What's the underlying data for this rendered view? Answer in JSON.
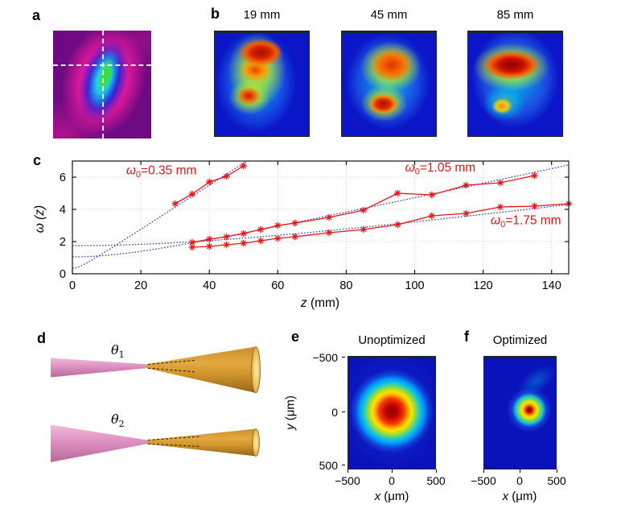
{
  "panels": {
    "a": {
      "label": "a",
      "description_overlays": [
        "horizontal-dashed-crosshair",
        "vertical-dashed-crosshair"
      ]
    },
    "b": {
      "label": "b",
      "titles": [
        "19 mm",
        "45 mm",
        "85 mm"
      ]
    },
    "c": {
      "label": "c"
    },
    "d": {
      "label": "d",
      "beams": [
        {
          "symbol": "θ",
          "sub": "1"
        },
        {
          "symbol": "θ",
          "sub": "2"
        }
      ]
    },
    "e": {
      "label": "e",
      "title": "Unoptimized",
      "yticks": [
        "−500",
        "0",
        "500"
      ],
      "xticks": [
        "−500",
        "0",
        "500"
      ],
      "xlabel_var": "x",
      "xlabel_unit": " (μm)",
      "ylabel_var": "y",
      "ylabel_unit": " (μm)"
    },
    "f": {
      "label": "f",
      "title": "Optimized",
      "xticks": [
        "−500",
        "0",
        "500"
      ],
      "xlabel_var": "x",
      "xlabel_unit": " (μm)"
    }
  },
  "chart_data": {
    "type": "line",
    "title": "",
    "xlabel_var": "z",
    "xlabel_rest": " (mm)",
    "ylabel": "ω (z)",
    "xlim": [
      0,
      145
    ],
    "ylim": [
      0,
      7
    ],
    "xticks": [
      0,
      20,
      40,
      60,
      80,
      100,
      120,
      140
    ],
    "yticks": [
      0,
      2,
      4,
      6
    ],
    "grid": true,
    "style": {
      "data_color": "#e81313",
      "fit_color": "#2b2bd2",
      "grid_color": "#c9c9c9",
      "text_color": "#000000"
    },
    "series": [
      {
        "name": "w0=0.35 mm measured",
        "marker": "*",
        "x": [
          30,
          35,
          40,
          45,
          50
        ],
        "y": [
          4.35,
          4.95,
          5.7,
          6.05,
          6.7
        ]
      },
      {
        "name": "w0=1.05 mm measured",
        "marker": "*",
        "x": [
          35,
          40,
          45,
          50,
          55,
          60,
          65,
          75,
          85,
          95,
          105,
          115,
          125,
          135
        ],
        "y": [
          1.95,
          2.15,
          2.3,
          2.5,
          2.75,
          3.0,
          3.15,
          3.5,
          3.95,
          5.0,
          4.9,
          5.5,
          5.65,
          6.1
        ]
      },
      {
        "name": "w0=1.75 mm measured",
        "marker": "*",
        "x": [
          35,
          40,
          45,
          50,
          55,
          60,
          65,
          75,
          85,
          95,
          105,
          115,
          125,
          135,
          145
        ],
        "y": [
          1.65,
          1.7,
          1.8,
          1.9,
          2.05,
          2.2,
          2.3,
          2.55,
          2.75,
          3.05,
          3.6,
          3.75,
          4.15,
          4.2,
          4.35
        ]
      }
    ],
    "fits": [
      {
        "name": "fit-0.35",
        "w0": 0.35,
        "zR": 2.55
      },
      {
        "name": "fit-1.05",
        "w0": 1.05,
        "zR": 22.8
      },
      {
        "name": "fit-1.75",
        "w0": 1.75,
        "zR": 64.6
      }
    ],
    "annotations": [
      {
        "z": 26,
        "w": 6.42,
        "parts": [
          {
            "t": "ω",
            "i": 1
          },
          {
            "t": "0",
            "s": 1
          },
          {
            "t": "=0.35 mm"
          }
        ]
      },
      {
        "z": 107.5,
        "w": 6.6,
        "parts": [
          {
            "t": "ω",
            "i": 1
          },
          {
            "t": "0",
            "s": 1
          },
          {
            "t": "=1.05 mm"
          }
        ]
      },
      {
        "z": 132.5,
        "w": 3.33,
        "parts": [
          {
            "t": "ω",
            "i": 1
          },
          {
            "t": "0",
            "s": 1
          },
          {
            "t": "=1.75 mm"
          }
        ]
      }
    ]
  }
}
